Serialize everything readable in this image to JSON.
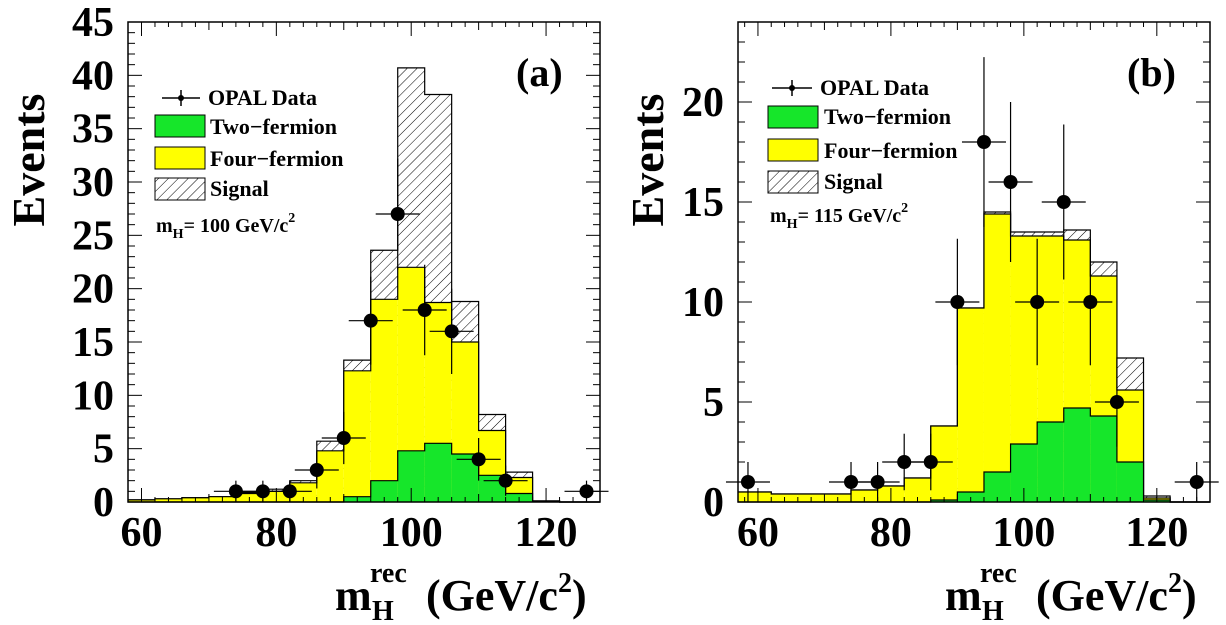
{
  "colors": {
    "two_fermion": "#16e62a",
    "four_fermion": "#ffff00",
    "signal_hatch": "#000000",
    "data": "#000000",
    "axis": "#000000"
  },
  "chart_data": [
    {
      "type": "histogram",
      "panel_label": "(a)",
      "ylabel": "Events",
      "xlabel": {
        "main": "m",
        "sup": "rec",
        "sub": "H",
        "unit": "(GeV/c",
        "unit_sup": "2",
        "unit_close": ")"
      },
      "xlim": [
        58,
        128
      ],
      "ylim": [
        0,
        45
      ],
      "xticks": [
        60,
        80,
        100,
        120
      ],
      "yticks": [
        0,
        5,
        10,
        15,
        20,
        25,
        30,
        35,
        40,
        45
      ],
      "bin_edges": [
        58,
        62,
        66,
        70,
        74,
        78,
        82,
        86,
        90,
        94,
        98,
        102,
        106,
        110,
        114,
        118,
        122,
        126,
        130
      ],
      "series": [
        {
          "name": "Two−fermion",
          "stack": "two_fermion",
          "values": [
            0,
            0,
            0,
            0,
            0,
            0,
            0,
            0,
            0.5,
            2.0,
            4.8,
            5.5,
            4.5,
            2.5,
            0.8,
            0.1,
            0,
            0
          ]
        },
        {
          "name": "Four−fermion",
          "stack": "four_fermion_total",
          "values": [
            0.2,
            0.3,
            0.4,
            0.5,
            0.8,
            1.0,
            1.8,
            4.8,
            12.3,
            19.0,
            22.0,
            18.7,
            15.0,
            6.7,
            2.3,
            0.1,
            0,
            0
          ]
        },
        {
          "name": "Signal",
          "stack": "signal_total",
          "values": [
            0.2,
            0.3,
            0.4,
            0.5,
            0.9,
            1.2,
            2.0,
            5.7,
            13.3,
            23.6,
            40.7,
            38.2,
            18.8,
            8.2,
            2.8,
            0.1,
            0,
            0
          ]
        }
      ],
      "data_points": {
        "name": "OPAL Data",
        "x": [
          74,
          78,
          82,
          86,
          90,
          94,
          98,
          102,
          106,
          110,
          114,
          126
        ],
        "y": [
          1,
          1,
          1,
          3,
          6,
          17,
          27,
          18,
          16,
          4,
          2,
          1
        ]
      },
      "legend": {
        "entries": [
          "OPAL Data",
          "Two−fermion",
          "Four−fermion",
          "Signal"
        ],
        "mass_main": "m",
        "mass_sub": "H",
        "mass_value": "= 100 GeV/c",
        "mass_sup": "2",
        "placement": "top-left"
      }
    },
    {
      "type": "histogram",
      "panel_label": "(b)",
      "ylabel": "Events",
      "xlabel": {
        "main": "m",
        "sup": "rec",
        "sub": "H",
        "unit": "(GeV/c",
        "unit_sup": "2",
        "unit_close": ")"
      },
      "xlim": [
        57,
        128
      ],
      "ylim": [
        0,
        24
      ],
      "xticks": [
        60,
        80,
        100,
        120
      ],
      "yticks": [
        0,
        5,
        10,
        15,
        20
      ],
      "bin_edges": [
        57,
        62,
        66,
        70,
        74,
        78,
        82,
        86,
        90,
        94,
        98,
        102,
        106,
        110,
        114,
        118,
        122,
        126,
        130
      ],
      "series": [
        {
          "name": "Two−fermion",
          "stack": "two_fermion",
          "values": [
            0,
            0,
            0,
            0,
            0,
            0,
            0,
            0.1,
            0.5,
            1.5,
            2.9,
            4.0,
            4.7,
            4.3,
            2.0,
            0.1,
            0,
            0
          ]
        },
        {
          "name": "Four−fermion",
          "stack": "four_fermion_total",
          "values": [
            0.5,
            0.4,
            0.4,
            0.4,
            0.6,
            0.8,
            1.2,
            3.8,
            9.7,
            14.4,
            13.3,
            13.3,
            13.1,
            11.3,
            5.6,
            0.2,
            0,
            0
          ]
        },
        {
          "name": "Signal",
          "stack": "signal_total",
          "values": [
            0.5,
            0.4,
            0.4,
            0.4,
            0.6,
            0.8,
            1.2,
            3.8,
            9.7,
            14.5,
            13.5,
            13.5,
            13.6,
            12.0,
            7.2,
            0.3,
            0,
            0
          ]
        }
      ],
      "data_points": {
        "name": "OPAL Data",
        "x": [
          58.5,
          74,
          78,
          82,
          86,
          90,
          94,
          98,
          102,
          106,
          110,
          114,
          126
        ],
        "y": [
          1,
          1,
          1,
          2,
          2,
          10,
          18,
          16,
          10,
          15,
          10,
          5,
          1
        ]
      },
      "legend": {
        "entries": [
          "OPAL Data",
          "Two−fermion",
          "Four−fermion",
          "Signal"
        ],
        "mass_main": "m",
        "mass_sub": "H",
        "mass_value": "= 115 GeV/c",
        "mass_sup": "2",
        "placement": "top-left"
      }
    }
  ]
}
